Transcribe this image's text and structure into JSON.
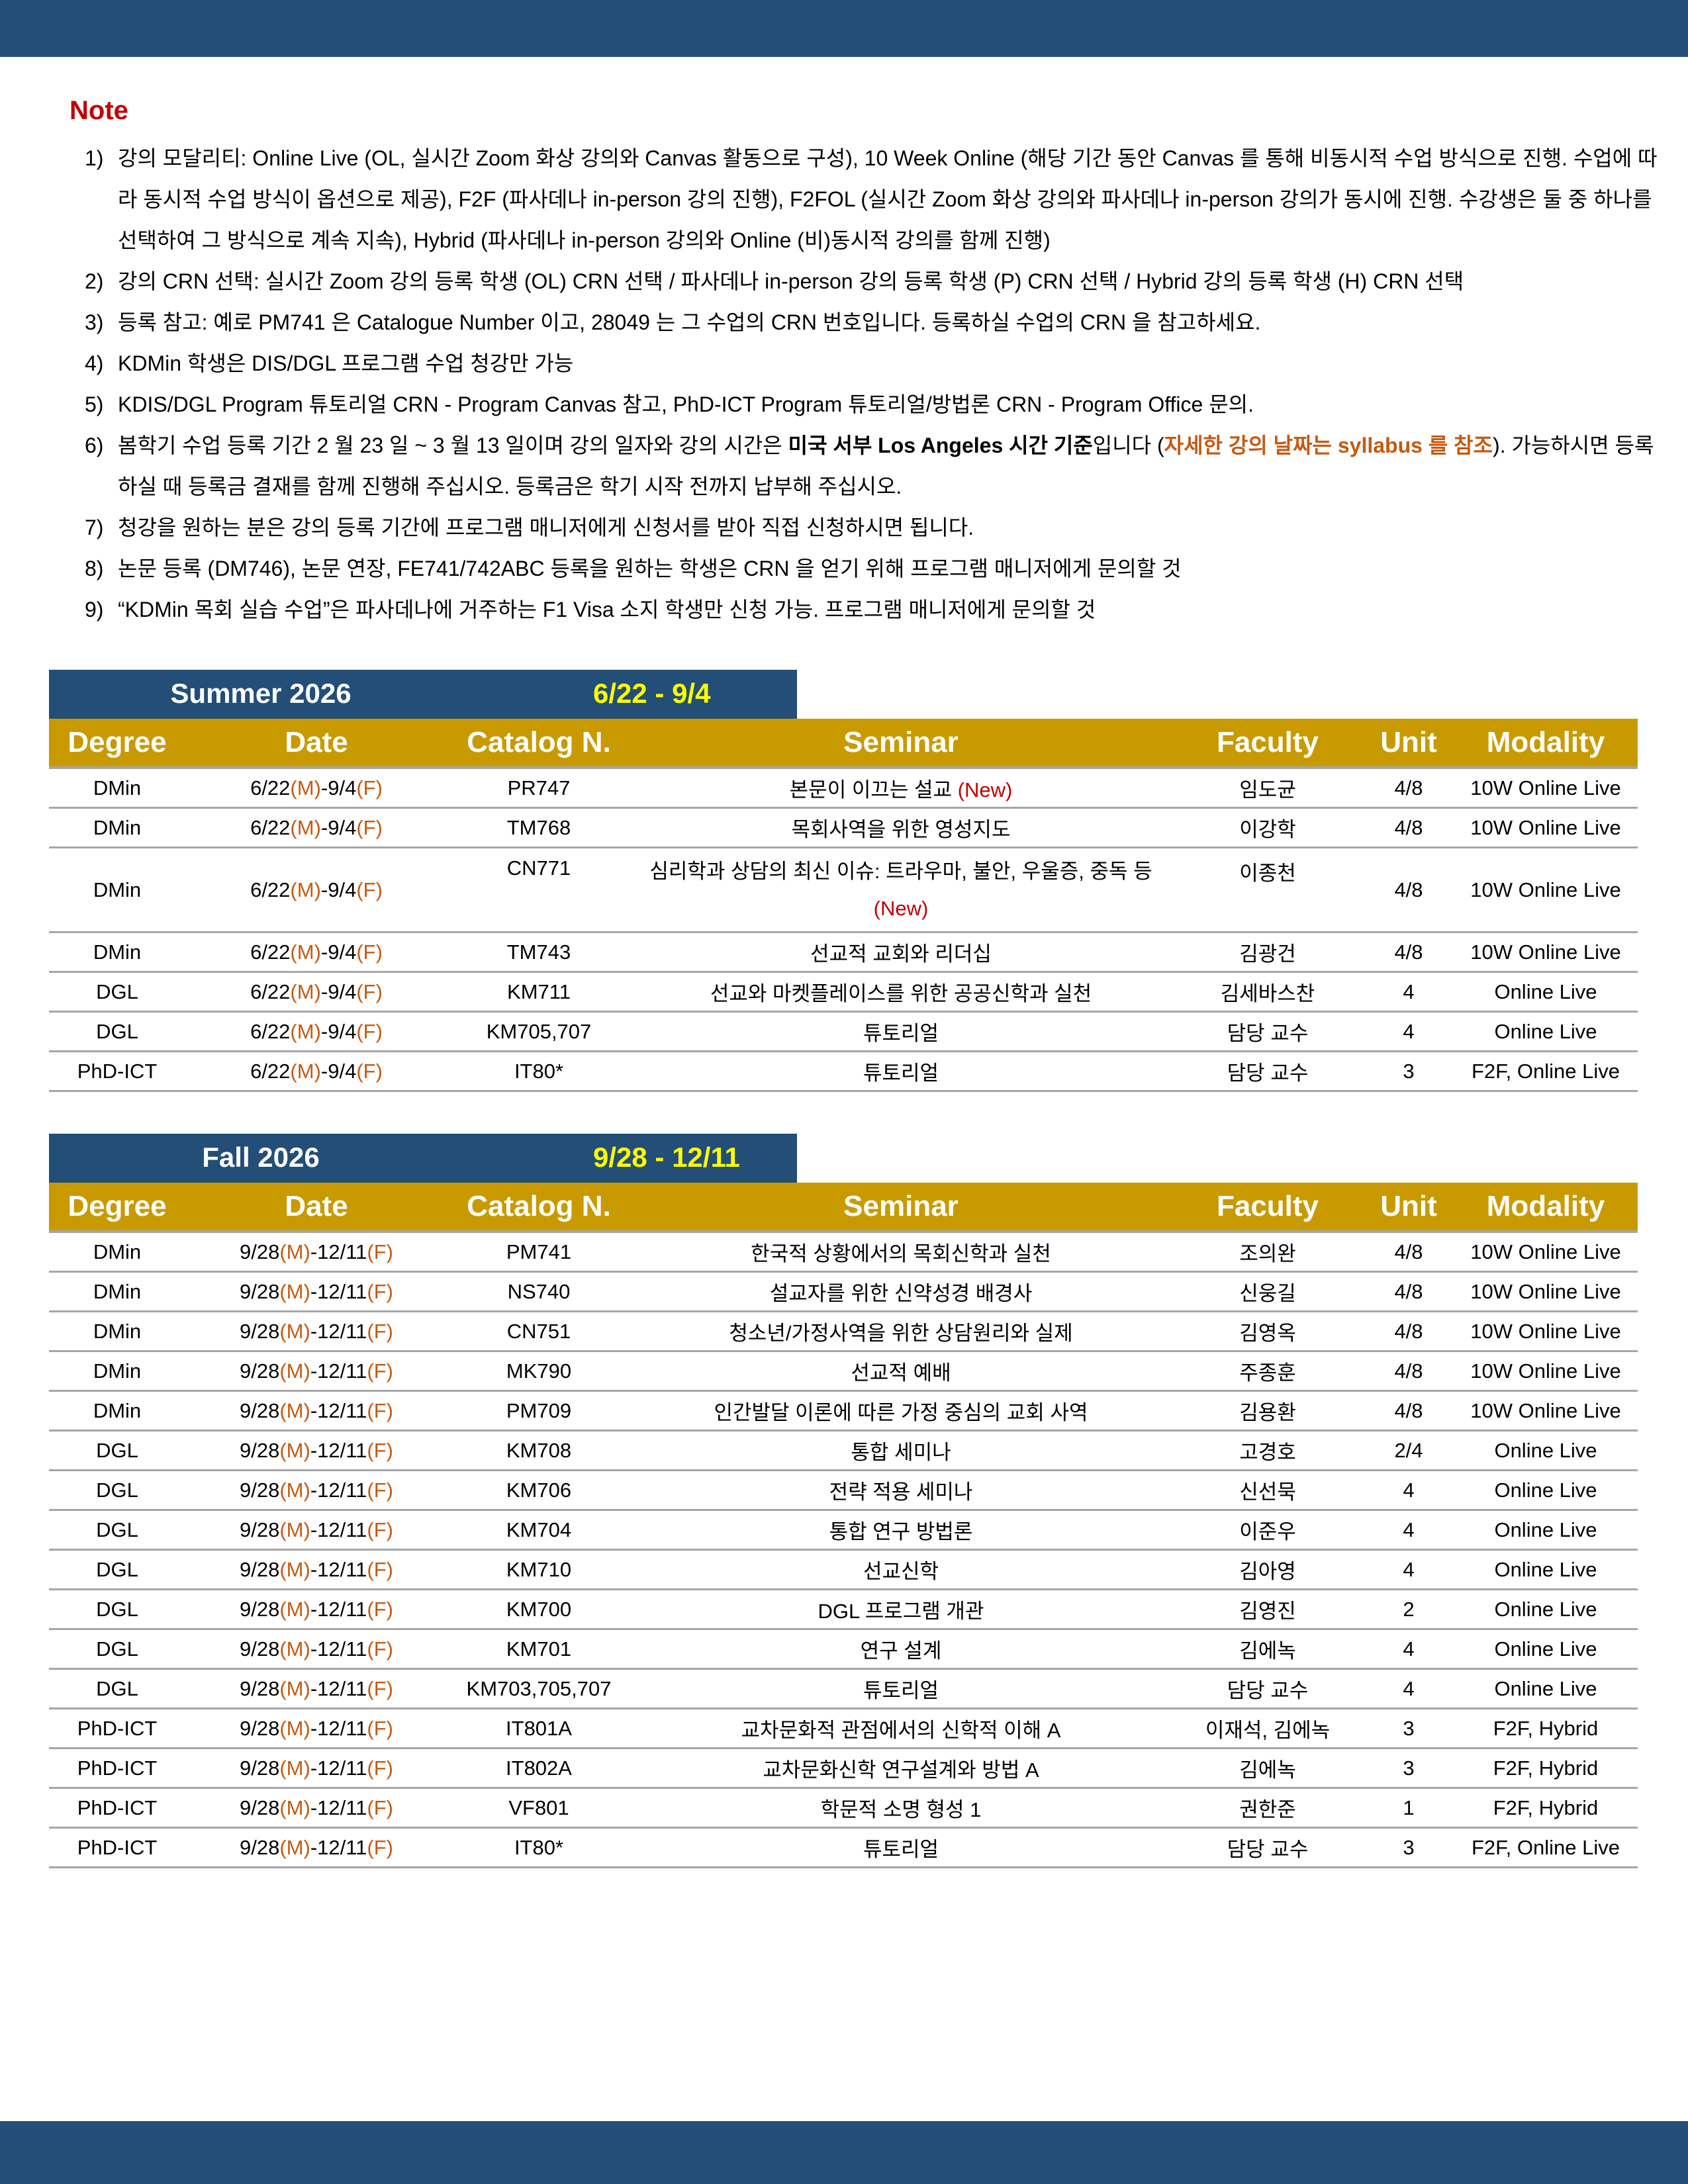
{
  "colors": {
    "brand_navy": "#234e77",
    "header_gold": "#c99a00",
    "date_yellow": "#ffff00",
    "note_red": "#c00000",
    "accent_orange": "#c55a11"
  },
  "note": {
    "title": "Note",
    "items": [
      {
        "num": "1)",
        "segments": [
          {
            "text": "강의 모달리티: Online Live (OL, 실시간 Zoom 화상 강의와 Canvas 활동으로 구성), 10 Week Online (해당 기간 동안 Canvas 를 통해 비동시적 수업 방식으로 진행. 수업에 따라 동시적 수업 방식이 옵션으로 제공), F2F (파사데나 in-person 강의 진행), F2FOL (실시간 Zoom 화상 강의와 파사데나 in-person 강의가 동시에 진행. 수강생은 둘 중 하나를 선택하여 그 방식으로 계속 지속), Hybrid (파사데나 in-person 강의와 Online (비)동시적 강의를 함께 진행)",
            "style": ""
          }
        ]
      },
      {
        "num": "2)",
        "segments": [
          {
            "text": "강의 CRN 선택: 실시간 Zoom 강의 등록 학생 (OL) CRN 선택 / 파사데나 in-person 강의 등록 학생 (P) CRN 선택 / Hybrid 강의 등록 학생 (H) CRN 선택",
            "style": ""
          }
        ]
      },
      {
        "num": "3)",
        "segments": [
          {
            "text": "등록 참고: 예로 PM741 은 Catalogue Number 이고, 28049 는 그 수업의 CRN 번호입니다. 등록하실 수업의 CRN 을 참고하세요.",
            "style": ""
          }
        ]
      },
      {
        "num": "4)",
        "segments": [
          {
            "text": "KDMin 학생은 DIS/DGL 프로그램 수업 청강만 가능",
            "style": ""
          }
        ]
      },
      {
        "num": "5)",
        "segments": [
          {
            "text": "KDIS/DGL Program 튜토리얼 CRN - Program Canvas 참고, PhD-ICT Program 튜토리얼/방법론 CRN - Program Office 문의.",
            "style": ""
          }
        ]
      },
      {
        "num": "6)",
        "segments": [
          {
            "text": "봄학기 수업 등록 기간 2 월 23 일 ~ 3 월 13 일이며 강의 일자와 강의 시간은 ",
            "style": ""
          },
          {
            "text": "미국 서부 Los Angeles 시간 기준",
            "style": "bold"
          },
          {
            "text": "입니다 (",
            "style": ""
          },
          {
            "text": "자세한 강의 날짜는 syllabus 를 참조",
            "style": "orange"
          },
          {
            "text": "). 가능하시면 등록하실 때 등록금 결재를 함께 진행해 주십시오. 등록금은 학기 시작 전까지 납부해 주십시오.",
            "style": ""
          }
        ]
      },
      {
        "num": "7)",
        "segments": [
          {
            "text": "청강을 원하는 분은 강의 등록 기간에 프로그램 매니저에게 신청서를 받아 직접 신청하시면 됩니다.",
            "style": ""
          }
        ]
      },
      {
        "num": "8)",
        "segments": [
          {
            "text": "논문 등록 (DM746), 논문 연장, FE741/742ABC 등록을 원하는 학생은 CRN 을 얻기 위해 프로그램 매니저에게 문의할 것",
            "style": ""
          }
        ]
      },
      {
        "num": "9)",
        "segments": [
          {
            "text": "“KDMin 목회 실습 수업”은 파사데나에 거주하는 F1 Visa 소지 학생만 신청 가능. 프로그램 매니저에게 문의할 것",
            "style": ""
          }
        ]
      }
    ]
  },
  "columns": [
    "Degree",
    "Date",
    "Catalog N.",
    "Seminar",
    "Faculty",
    "Unit",
    "Modality"
  ],
  "terms": [
    {
      "name": "Summer 2026",
      "range": "6/22 - 9/4",
      "rows": [
        {
          "degree": "DMin",
          "date": {
            "start": "6/22",
            "start_day": "(M)",
            "end": "-9/4",
            "end_day": "(F)"
          },
          "catalog": "PR747",
          "seminar": "본문이 이끄는 설교",
          "new": "(New)",
          "faculty": "임도균",
          "unit": "4/8",
          "modality": "10W Online Live"
        },
        {
          "degree": "DMin",
          "date": {
            "start": "6/22",
            "start_day": "(M)",
            "end": "-9/4",
            "end_day": "(F)"
          },
          "catalog": "TM768",
          "seminar": "목회사역을 위한 영성지도",
          "faculty": "이강학",
          "unit": "4/8",
          "modality": "10W Online Live"
        },
        {
          "degree": "DMin",
          "date": {
            "start": "6/22",
            "start_day": "(M)",
            "end": "-9/4",
            "end_day": "(F)"
          },
          "catalog": "CN771",
          "seminar": "심리학과 상담의 최신 이슈: 트라우마, 불안, 우울증, 중독 등",
          "new": "(New)",
          "faculty": "이종천",
          "unit": "4/8",
          "modality": "10W Online Live",
          "tall": true
        },
        {
          "degree": "DMin",
          "date": {
            "start": "6/22",
            "start_day": "(M)",
            "end": "-9/4",
            "end_day": "(F)"
          },
          "catalog": "TM743",
          "seminar": "선교적 교회와 리더십",
          "faculty": "김광건",
          "unit": "4/8",
          "modality": "10W Online Live"
        },
        {
          "degree": "DGL",
          "date": {
            "start": "6/22",
            "start_day": "(M)",
            "end": "-9/4",
            "end_day": "(F)"
          },
          "catalog": "KM711",
          "seminar": "선교와 마켓플레이스를 위한 공공신학과 실천",
          "faculty": "김세바스찬",
          "unit": "4",
          "modality": "Online Live"
        },
        {
          "degree": "DGL",
          "date": {
            "start": "6/22",
            "start_day": "(M)",
            "end": "-9/4",
            "end_day": "(F)"
          },
          "catalog": "KM705,707",
          "seminar": "튜토리얼",
          "faculty": "담당 교수",
          "unit": "4",
          "modality": "Online Live"
        },
        {
          "degree": "PhD-ICT",
          "date": {
            "start": "6/22",
            "start_day": "(M)",
            "end": "-9/4",
            "end_day": "(F)"
          },
          "catalog": "IT80*",
          "seminar": "튜토리얼",
          "faculty": "담당 교수",
          "unit": "3",
          "modality": "F2F, Online Live"
        }
      ]
    },
    {
      "name": "Fall 2026",
      "range": "9/28 - 12/11",
      "rows": [
        {
          "degree": "DMin",
          "date": {
            "start": "9/28",
            "start_day": "(M)",
            "end": "-12/11",
            "end_day": "(F)"
          },
          "catalog": "PM741",
          "seminar": "한국적 상황에서의 목회신학과 실천",
          "faculty": "조의완",
          "unit": "4/8",
          "modality": "10W Online Live"
        },
        {
          "degree": "DMin",
          "date": {
            "start": "9/28",
            "start_day": "(M)",
            "end": "-12/11",
            "end_day": "(F)"
          },
          "catalog": "NS740",
          "seminar": "설교자를 위한 신약성경 배경사",
          "faculty": "신웅길",
          "unit": "4/8",
          "modality": "10W Online Live"
        },
        {
          "degree": "DMin",
          "date": {
            "start": "9/28",
            "start_day": "(M)",
            "end": "-12/11",
            "end_day": "(F)"
          },
          "catalog": "CN751",
          "seminar": "청소년/가정사역을 위한 상담원리와 실제",
          "faculty": "김영옥",
          "unit": "4/8",
          "modality": "10W Online Live"
        },
        {
          "degree": "DMin",
          "date": {
            "start": "9/28",
            "start_day": "(M)",
            "end": "-12/11",
            "end_day": "(F)"
          },
          "catalog": "MK790",
          "seminar": "선교적 예배",
          "faculty": "주종훈",
          "unit": "4/8",
          "modality": "10W Online Live"
        },
        {
          "degree": "DMin",
          "date": {
            "start": "9/28",
            "start_day": "(M)",
            "end": "-12/11",
            "end_day": "(F)"
          },
          "catalog": "PM709",
          "seminar": "인간발달 이론에 따른 가정 중심의 교회 사역",
          "faculty": "김용환",
          "unit": "4/8",
          "modality": "10W Online Live"
        },
        {
          "degree": "DGL",
          "date": {
            "start": "9/28",
            "start_day": "(M)",
            "end": "-12/11",
            "end_day": "(F)"
          },
          "catalog": "KM708",
          "seminar": "통합 세미나",
          "faculty": "고경호",
          "unit": "2/4",
          "modality": "Online Live"
        },
        {
          "degree": "DGL",
          "date": {
            "start": "9/28",
            "start_day": "(M)",
            "end": "-12/11",
            "end_day": "(F)"
          },
          "catalog": "KM706",
          "seminar": "전략 적용 세미나",
          "faculty": "신선묵",
          "unit": "4",
          "modality": "Online Live"
        },
        {
          "degree": "DGL",
          "date": {
            "start": "9/28",
            "start_day": "(M)",
            "end": "-12/11",
            "end_day": "(F)"
          },
          "catalog": "KM704",
          "seminar": "통합 연구 방법론",
          "faculty": "이준우",
          "unit": "4",
          "modality": "Online Live"
        },
        {
          "degree": "DGL",
          "date": {
            "start": "9/28",
            "start_day": "(M)",
            "end": "-12/11",
            "end_day": "(F)"
          },
          "catalog": "KM710",
          "seminar": "선교신학",
          "faculty": "김아영",
          "unit": "4",
          "modality": "Online Live"
        },
        {
          "degree": "DGL",
          "date": {
            "start": "9/28",
            "start_day": "(M)",
            "end": "-12/11",
            "end_day": "(F)"
          },
          "catalog": "KM700",
          "seminar": "DGL 프로그램 개관",
          "faculty": "김영진",
          "unit": "2",
          "modality": "Online Live"
        },
        {
          "degree": "DGL",
          "date": {
            "start": "9/28",
            "start_day": "(M)",
            "end": "-12/11",
            "end_day": "(F)"
          },
          "catalog": "KM701",
          "seminar": "연구 설계",
          "faculty": "김에녹",
          "unit": "4",
          "modality": "Online Live"
        },
        {
          "degree": "DGL",
          "date": {
            "start": "9/28",
            "start_day": "(M)",
            "end": "-12/11",
            "end_day": "(F)"
          },
          "catalog": "KM703,705,707",
          "seminar": "튜토리얼",
          "faculty": "담당 교수",
          "unit": "4",
          "modality": "Online Live"
        },
        {
          "degree": "PhD-ICT",
          "date": {
            "start": "9/28",
            "start_day": "(M)",
            "end": "-12/11",
            "end_day": "(F)"
          },
          "catalog": "IT801A",
          "seminar": "교차문화적 관점에서의 신학적 이해 A",
          "faculty": "이재석, 김에녹",
          "unit": "3",
          "modality": "F2F, Hybrid"
        },
        {
          "degree": "PhD-ICT",
          "date": {
            "start": "9/28",
            "start_day": "(M)",
            "end": "-12/11",
            "end_day": "(F)"
          },
          "catalog": "IT802A",
          "seminar": "교차문화신학 연구설계와 방법 A",
          "faculty": "김에녹",
          "unit": "3",
          "modality": "F2F, Hybrid"
        },
        {
          "degree": "PhD-ICT",
          "date": {
            "start": "9/28",
            "start_day": "(M)",
            "end": "-12/11",
            "end_day": "(F)"
          },
          "catalog": "VF801",
          "seminar": "학문적 소명 형성 1",
          "faculty": "권한준",
          "unit": "1",
          "modality": "F2F, Hybrid"
        },
        {
          "degree": "PhD-ICT",
          "date": {
            "start": "9/28",
            "start_day": "(M)",
            "end": "-12/11",
            "end_day": "(F)"
          },
          "catalog": "IT80*",
          "seminar": "튜토리얼",
          "faculty": "담당 교수",
          "unit": "3",
          "modality": "F2F, Online Live"
        }
      ]
    }
  ]
}
